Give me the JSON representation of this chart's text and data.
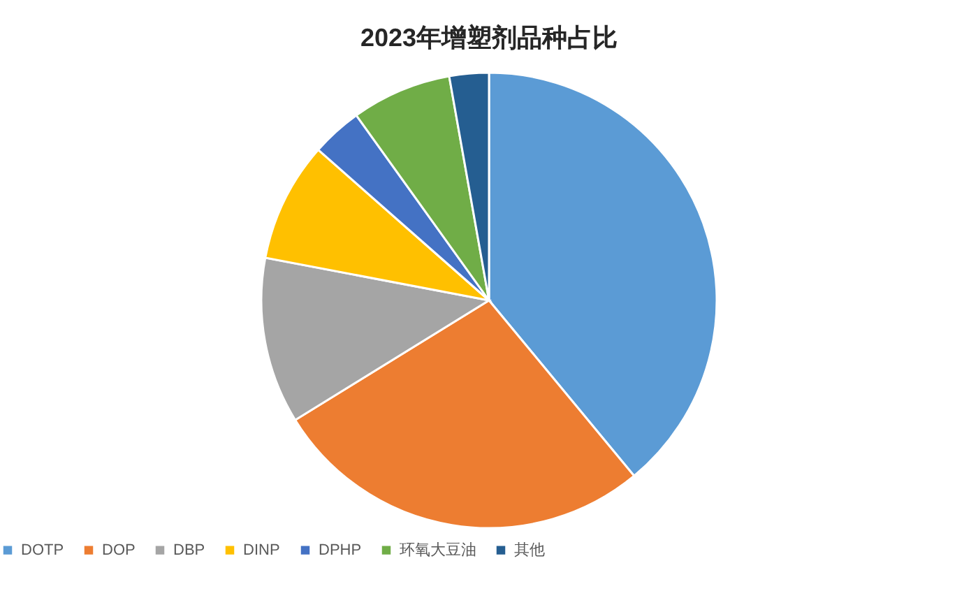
{
  "chart_data": {
    "type": "pie",
    "title": "2023年增塑剂品种占比",
    "categories": [
      "DOTP",
      "DOP",
      "DBP",
      "DINP",
      "DPHP",
      "环氧大豆油",
      "其他"
    ],
    "values": [
      39,
      27.2,
      11.8,
      8.5,
      3.6,
      7.1,
      2.8
    ],
    "colors": [
      "#5b9bd5",
      "#ed7d31",
      "#a5a5a5",
      "#ffc000",
      "#4472c4",
      "#70ad47",
      "#255e91"
    ],
    "legend": "bottom"
  }
}
